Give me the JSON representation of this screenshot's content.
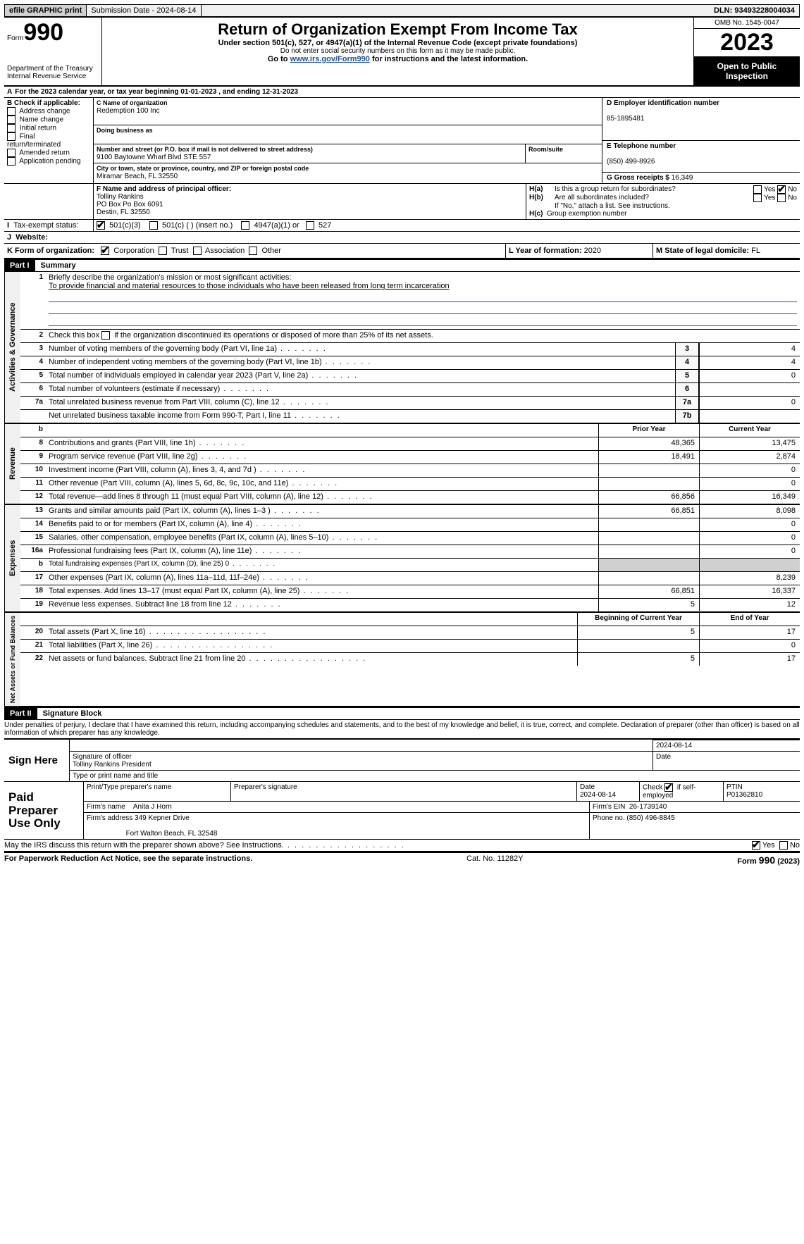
{
  "top": {
    "efile": "efile GRAPHIC print",
    "submission": "Submission Date - 2024-08-14",
    "dln": "DLN: 93493228004034"
  },
  "header": {
    "form": "Form",
    "num": "990",
    "dept": "Department of the Treasury Internal Revenue Service",
    "title": "Return of Organization Exempt From Income Tax",
    "sub": "Under section 501(c), 527, or 4947(a)(1) of the Internal Revenue Code (except private foundations)",
    "sub2": "Do not enter social security numbers on this form as it may be made public.",
    "goto_pre": "Go to ",
    "goto_link": "www.irs.gov/Form990",
    "goto_post": " for instructions and the latest information.",
    "omb": "OMB No. 1545-0047",
    "year": "2023",
    "open": "Open to Public Inspection"
  },
  "a": {
    "text_pre": "For the 2023 calendar year, or tax year beginning ",
    "begin": "01-01-2023",
    "mid": " , and ending ",
    "end": "12-31-2023"
  },
  "b": {
    "label": "B Check if applicable:",
    "opts": [
      "Address change",
      "Name change",
      "Initial return",
      "Final return/terminated",
      "Amended return",
      "Application pending"
    ]
  },
  "c": {
    "name_lbl": "C Name of organization",
    "name": "Redemption 100 Inc",
    "dba_lbl": "Doing business as",
    "addr1_lbl": "Number and street (or P.O. box if mail is not delivered to street address)",
    "addr1": "9100 Baytowne Wharf Blvd STE 557",
    "room_lbl": "Room/suite",
    "addr2_lbl": "City or town, state or province, country, and ZIP or foreign postal code",
    "addr2": "Miramar Beach, FL  32550"
  },
  "d": {
    "lbl": "D Employer identification number",
    "val": "85-1895481"
  },
  "e": {
    "lbl": "E Telephone number",
    "val": "(850) 499-8926"
  },
  "g": {
    "lbl": "G Gross receipts $",
    "val": "16,349"
  },
  "f": {
    "lbl": "F  Name and address of principal officer:",
    "name": "Tolliny Rankins",
    "addr1": "PO Box Po Box 6091",
    "addr2": "Destin, FL  32550"
  },
  "h": {
    "a_lbl": "Is this a group return for subordinates?",
    "b_lbl": "Are all subordinates included?",
    "b_note": "If \"No,\" attach a list. See instructions.",
    "c_lbl": "Group exemption number",
    "yes": "Yes",
    "no": "No"
  },
  "i": {
    "lbl": "Tax-exempt status:",
    "o1": "501(c)(3)",
    "o2": "501(c) (  ) (insert no.)",
    "o3": "4947(a)(1) or",
    "o4": "527"
  },
  "j": {
    "lbl": "Website:"
  },
  "k": {
    "lbl": "K Form of organization:",
    "o1": "Corporation",
    "o2": "Trust",
    "o3": "Association",
    "o4": "Other"
  },
  "l": {
    "lbl": "L Year of formation:",
    "val": "2020"
  },
  "m": {
    "lbl": "M State of legal domicile:",
    "val": "FL"
  },
  "part1": {
    "hdr": "Part I",
    "title": "Summary"
  },
  "summary": {
    "vtabs": [
      "Activities & Governance",
      "Revenue",
      "Expenses",
      "Net Assets or Fund Balances"
    ],
    "l1_lbl": "Briefly describe the organization's mission or most significant activities:",
    "l1_val": "To provide financial and material resources to those individuals who have been released from long term incarceration",
    "l2": "Check this box       if the organization discontinued its operations or disposed of more than 25% of its net assets.",
    "rows_gov": [
      {
        "n": "3",
        "d": "Number of voting members of the governing body (Part VI, line 1a)",
        "k": "3",
        "v": "4"
      },
      {
        "n": "4",
        "d": "Number of independent voting members of the governing body (Part VI, line 1b)",
        "k": "4",
        "v": "4"
      },
      {
        "n": "5",
        "d": "Total number of individuals employed in calendar year 2023 (Part V, line 2a)",
        "k": "5",
        "v": "0"
      },
      {
        "n": "6",
        "d": "Total number of volunteers (estimate if necessary)",
        "k": "6",
        "v": ""
      },
      {
        "n": "7a",
        "d": "Total unrelated business revenue from Part VIII, column (C), line 12",
        "k": "7a",
        "v": "0"
      },
      {
        "n": "",
        "d": "Net unrelated business taxable income from Form 990-T, Part I, line 11",
        "k": "7b",
        "v": ""
      }
    ],
    "col_hdrs": {
      "b": "b",
      "py": "Prior Year",
      "cy": "Current Year"
    },
    "rows_rev": [
      {
        "n": "8",
        "d": "Contributions and grants (Part VIII, line 1h)",
        "py": "48,365",
        "cy": "13,475"
      },
      {
        "n": "9",
        "d": "Program service revenue (Part VIII, line 2g)",
        "py": "18,491",
        "cy": "2,874"
      },
      {
        "n": "10",
        "d": "Investment income (Part VIII, column (A), lines 3, 4, and 7d )",
        "py": "",
        "cy": "0"
      },
      {
        "n": "11",
        "d": "Other revenue (Part VIII, column (A), lines 5, 6d, 8c, 9c, 10c, and 11e)",
        "py": "",
        "cy": "0"
      },
      {
        "n": "12",
        "d": "Total revenue—add lines 8 through 11 (must equal Part VIII, column (A), line 12)",
        "py": "66,856",
        "cy": "16,349"
      }
    ],
    "rows_exp": [
      {
        "n": "13",
        "d": "Grants and similar amounts paid (Part IX, column (A), lines 1–3 )",
        "py": "66,851",
        "cy": "8,098"
      },
      {
        "n": "14",
        "d": "Benefits paid to or for members (Part IX, column (A), line 4)",
        "py": "",
        "cy": "0"
      },
      {
        "n": "15",
        "d": "Salaries, other compensation, employee benefits (Part IX, column (A), lines 5–10)",
        "py": "",
        "cy": "0"
      },
      {
        "n": "16a",
        "d": "Professional fundraising fees (Part IX, column (A), line 11e)",
        "py": "",
        "cy": "0"
      },
      {
        "n": "b",
        "d": "Total fundraising expenses (Part IX, column (D), line 25) 0",
        "py": "GREY",
        "cy": "GREY"
      },
      {
        "n": "17",
        "d": "Other expenses (Part IX, column (A), lines 11a–11d, 11f–24e)",
        "py": "",
        "cy": "8,239"
      },
      {
        "n": "18",
        "d": "Total expenses. Add lines 13–17 (must equal Part IX, column (A), line 25)",
        "py": "66,851",
        "cy": "16,337"
      },
      {
        "n": "19",
        "d": "Revenue less expenses. Subtract line 18 from line 12",
        "py": "5",
        "cy": "12"
      }
    ],
    "col_hdrs2": {
      "b": "Beginning of Current Year",
      "e": "End of Year"
    },
    "rows_net": [
      {
        "n": "20",
        "d": "Total assets (Part X, line 16)",
        "py": "5",
        "cy": "17"
      },
      {
        "n": "21",
        "d": "Total liabilities (Part X, line 26)",
        "py": "",
        "cy": "0"
      },
      {
        "n": "22",
        "d": "Net assets or fund balances. Subtract line 21 from line 20",
        "py": "5",
        "cy": "17"
      }
    ]
  },
  "part2": {
    "hdr": "Part II",
    "title": "Signature Block"
  },
  "sig_decl": "Under penalties of perjury, I declare that I have examined this return, including accompanying schedules and statements, and to the best of my knowledge and belief, it is true, correct, and complete. Declaration of preparer (other than officer) is based on all information of which preparer has any knowledge.",
  "sign_here": {
    "lbl": "Sign Here",
    "date": "2024-08-14",
    "sig_lbl": "Signature of officer",
    "officer": "Tolliny Rankins  President",
    "type_lbl": "Type or print name and title",
    "date_lbl": "Date"
  },
  "paid": {
    "lbl": "Paid Preparer Use Only",
    "h_name": "Print/Type preparer's name",
    "h_sig": "Preparer's signature",
    "h_date": "Date",
    "date": "2024-08-14",
    "h_check": "Check         if self-employed",
    "h_ptin": "PTIN",
    "ptin": "P01362810",
    "firm_lbl": "Firm's name",
    "firm": "Anita J Horn",
    "ein_lbl": "Firm's EIN",
    "ein": "26-1739140",
    "addr_lbl": "Firm's address",
    "addr1": "349 Kepner Drive",
    "addr2": "Fort Walton Beach, FL  32548",
    "phone_lbl": "Phone no.",
    "phone": "(850) 496-8845"
  },
  "discuss": {
    "q": "May the IRS discuss this return with the preparer shown above? See Instructions.",
    "yes": "Yes",
    "no": "No"
  },
  "footer": {
    "l": "For Paperwork Reduction Act Notice, see the separate instructions.",
    "m": "Cat. No. 11282Y",
    "r": "Form 990 (2023)"
  }
}
